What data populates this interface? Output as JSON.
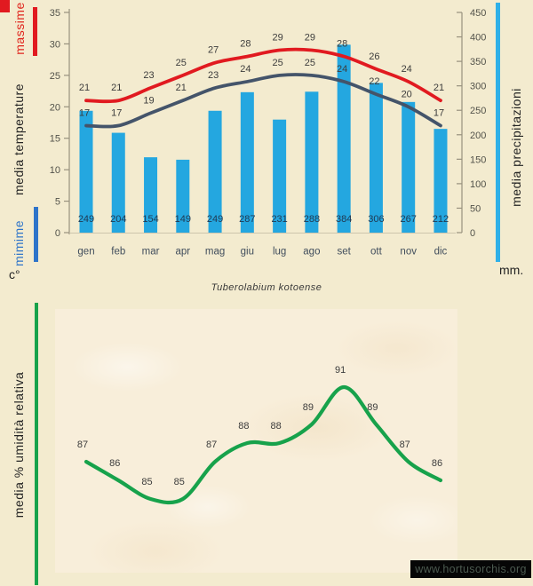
{
  "page": {
    "title": "Tuberolabium kotoense",
    "watermark": "www.hortusorchis.org",
    "background": "#f3ebcf"
  },
  "labels": {
    "massime": "massime",
    "media_temperature": "media  temperature",
    "mimime": "mimime",
    "celsius_unit": "c°",
    "media_precipitazioni": "media  precipitazioni",
    "mm_unit": "mm.",
    "umidita": "media %  umidità relativa"
  },
  "colors": {
    "massime_line": "#e11a20",
    "media_line": "#44546a",
    "precip_bar": "#24a7e0",
    "humidity_line": "#17a24b",
    "mimime_legend": "#2e74c9",
    "precip_legend": "#2fb0e8",
    "axis": "#98917e",
    "tick_text": "#52524a",
    "temp_label_text": "#3c3c3c",
    "precip_label_text": "#203a53",
    "month_text": "#404d5c"
  },
  "chart_data": [
    {
      "type": "bar",
      "subtype": "combo-bar-line",
      "categories": [
        "gen",
        "feb",
        "mar",
        "apr",
        "mag",
        "giu",
        "lug",
        "ago",
        "set",
        "ott",
        "nov",
        "dic"
      ],
      "series": [
        {
          "name": "massime",
          "type": "line",
          "axis": "left",
          "color": "#e11a20",
          "values": [
            21,
            21,
            23,
            25,
            27,
            28,
            29,
            29,
            28,
            26,
            24,
            21
          ]
        },
        {
          "name": "media temperature",
          "type": "line",
          "axis": "left",
          "color": "#44546a",
          "values": [
            17,
            17,
            19,
            21,
            23,
            24,
            25,
            25,
            24,
            22,
            20,
            17
          ]
        },
        {
          "name": "media precipitazioni",
          "type": "bar",
          "axis": "right",
          "color": "#24a7e0",
          "values": [
            249,
            204,
            154,
            149,
            249,
            287,
            231,
            288,
            384,
            306,
            267,
            212
          ]
        }
      ],
      "y_left": {
        "label": "media temperature",
        "unit": "c°",
        "min": 0,
        "max": 35,
        "step": 5,
        "ticks": [
          0,
          5,
          10,
          15,
          20,
          25,
          30,
          35
        ]
      },
      "y_right": {
        "label": "media precipitazioni",
        "unit": "mm.",
        "min": 0,
        "max": 450,
        "step": 50,
        "ticks": [
          0,
          50,
          100,
          150,
          200,
          250,
          300,
          350,
          400,
          450
        ]
      },
      "grid": false,
      "legend_position": "left-and-right-rotated"
    },
    {
      "type": "line",
      "title": "Tuberolabium kotoense",
      "categories": [
        "gen",
        "feb",
        "mar",
        "apr",
        "mag",
        "giu",
        "lug",
        "ago",
        "set",
        "ott",
        "nov",
        "dic"
      ],
      "series": [
        {
          "name": "media % umidità relativa",
          "color": "#17a24b",
          "values": [
            87,
            86,
            85,
            85,
            87,
            88,
            88,
            89,
            91,
            89,
            87,
            86
          ]
        }
      ],
      "ylabel": "media % umidità relativa",
      "axes_visible": false,
      "grid": false
    }
  ]
}
